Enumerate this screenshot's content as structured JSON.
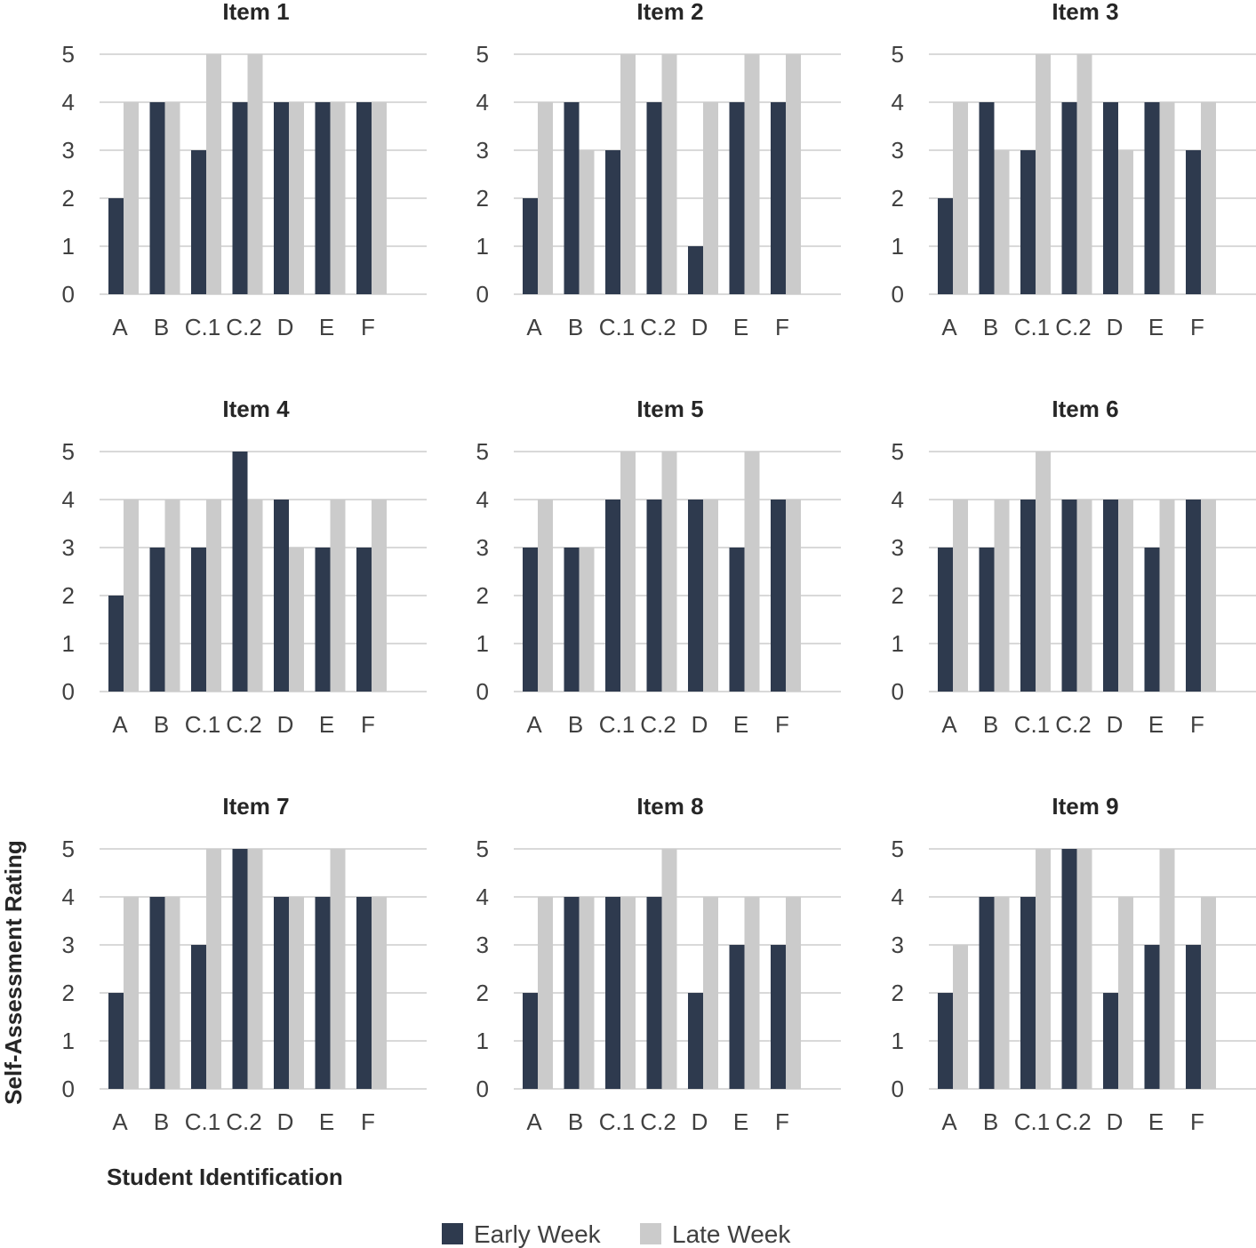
{
  "colors": {
    "early": "#2e3a4e",
    "late": "#cbcbcb",
    "grid": "#d9d9d9",
    "text": "#404040"
  },
  "chart_data": {
    "type": "bar",
    "ylabel": "Self-Assessment Rating",
    "xlabel": "Student Identification",
    "ylim": [
      0,
      5
    ],
    "yticks": [
      "0",
      "1",
      "2",
      "3",
      "4",
      "5"
    ],
    "categories": [
      "A",
      "B",
      "C.1",
      "C.2",
      "D",
      "E",
      "F"
    ],
    "legend": {
      "position": "bottom",
      "entries": [
        "Early Week",
        "Late Week"
      ]
    },
    "grid": true,
    "panels": [
      {
        "title": "Item 1",
        "series": [
          {
            "name": "Early Week",
            "values": [
              2,
              4,
              3,
              4,
              4,
              4,
              4
            ]
          },
          {
            "name": "Late Week",
            "values": [
              4,
              4,
              5,
              5,
              4,
              4,
              4
            ]
          }
        ]
      },
      {
        "title": "Item 2",
        "series": [
          {
            "name": "Early Week",
            "values": [
              2,
              4,
              3,
              4,
              1,
              4,
              4
            ]
          },
          {
            "name": "Late Week",
            "values": [
              4,
              3,
              5,
              5,
              4,
              5,
              5
            ]
          }
        ]
      },
      {
        "title": "Item 3",
        "series": [
          {
            "name": "Early Week",
            "values": [
              2,
              4,
              3,
              4,
              4,
              4,
              3
            ]
          },
          {
            "name": "Late Week",
            "values": [
              4,
              3,
              5,
              5,
              3,
              4,
              4
            ]
          }
        ]
      },
      {
        "title": "Item 4",
        "series": [
          {
            "name": "Early Week",
            "values": [
              2,
              3,
              3,
              5,
              4,
              3,
              3
            ]
          },
          {
            "name": "Late Week",
            "values": [
              4,
              4,
              4,
              4,
              3,
              4,
              4
            ]
          }
        ]
      },
      {
        "title": "Item 5",
        "series": [
          {
            "name": "Early Week",
            "values": [
              3,
              3,
              4,
              4,
              4,
              3,
              4
            ]
          },
          {
            "name": "Late Week",
            "values": [
              4,
              3,
              5,
              5,
              4,
              5,
              4
            ]
          }
        ]
      },
      {
        "title": "Item 6",
        "series": [
          {
            "name": "Early Week",
            "values": [
              3,
              3,
              4,
              4,
              4,
              3,
              4
            ]
          },
          {
            "name": "Late Week",
            "values": [
              4,
              4,
              5,
              4,
              4,
              4,
              4
            ]
          }
        ]
      },
      {
        "title": "Item 7",
        "series": [
          {
            "name": "Early Week",
            "values": [
              2,
              4,
              3,
              5,
              4,
              4,
              4
            ]
          },
          {
            "name": "Late Week",
            "values": [
              4,
              4,
              5,
              5,
              4,
              5,
              4
            ]
          }
        ]
      },
      {
        "title": "Item 8",
        "series": [
          {
            "name": "Early Week",
            "values": [
              2,
              4,
              4,
              4,
              2,
              3,
              3
            ]
          },
          {
            "name": "Late Week",
            "values": [
              4,
              4,
              4,
              5,
              4,
              4,
              4
            ]
          }
        ]
      },
      {
        "title": "Item 9",
        "series": [
          {
            "name": "Early Week",
            "values": [
              2,
              4,
              4,
              5,
              2,
              3,
              3
            ]
          },
          {
            "name": "Late Week",
            "values": [
              3,
              4,
              5,
              5,
              4,
              5,
              4
            ]
          }
        ]
      }
    ]
  }
}
